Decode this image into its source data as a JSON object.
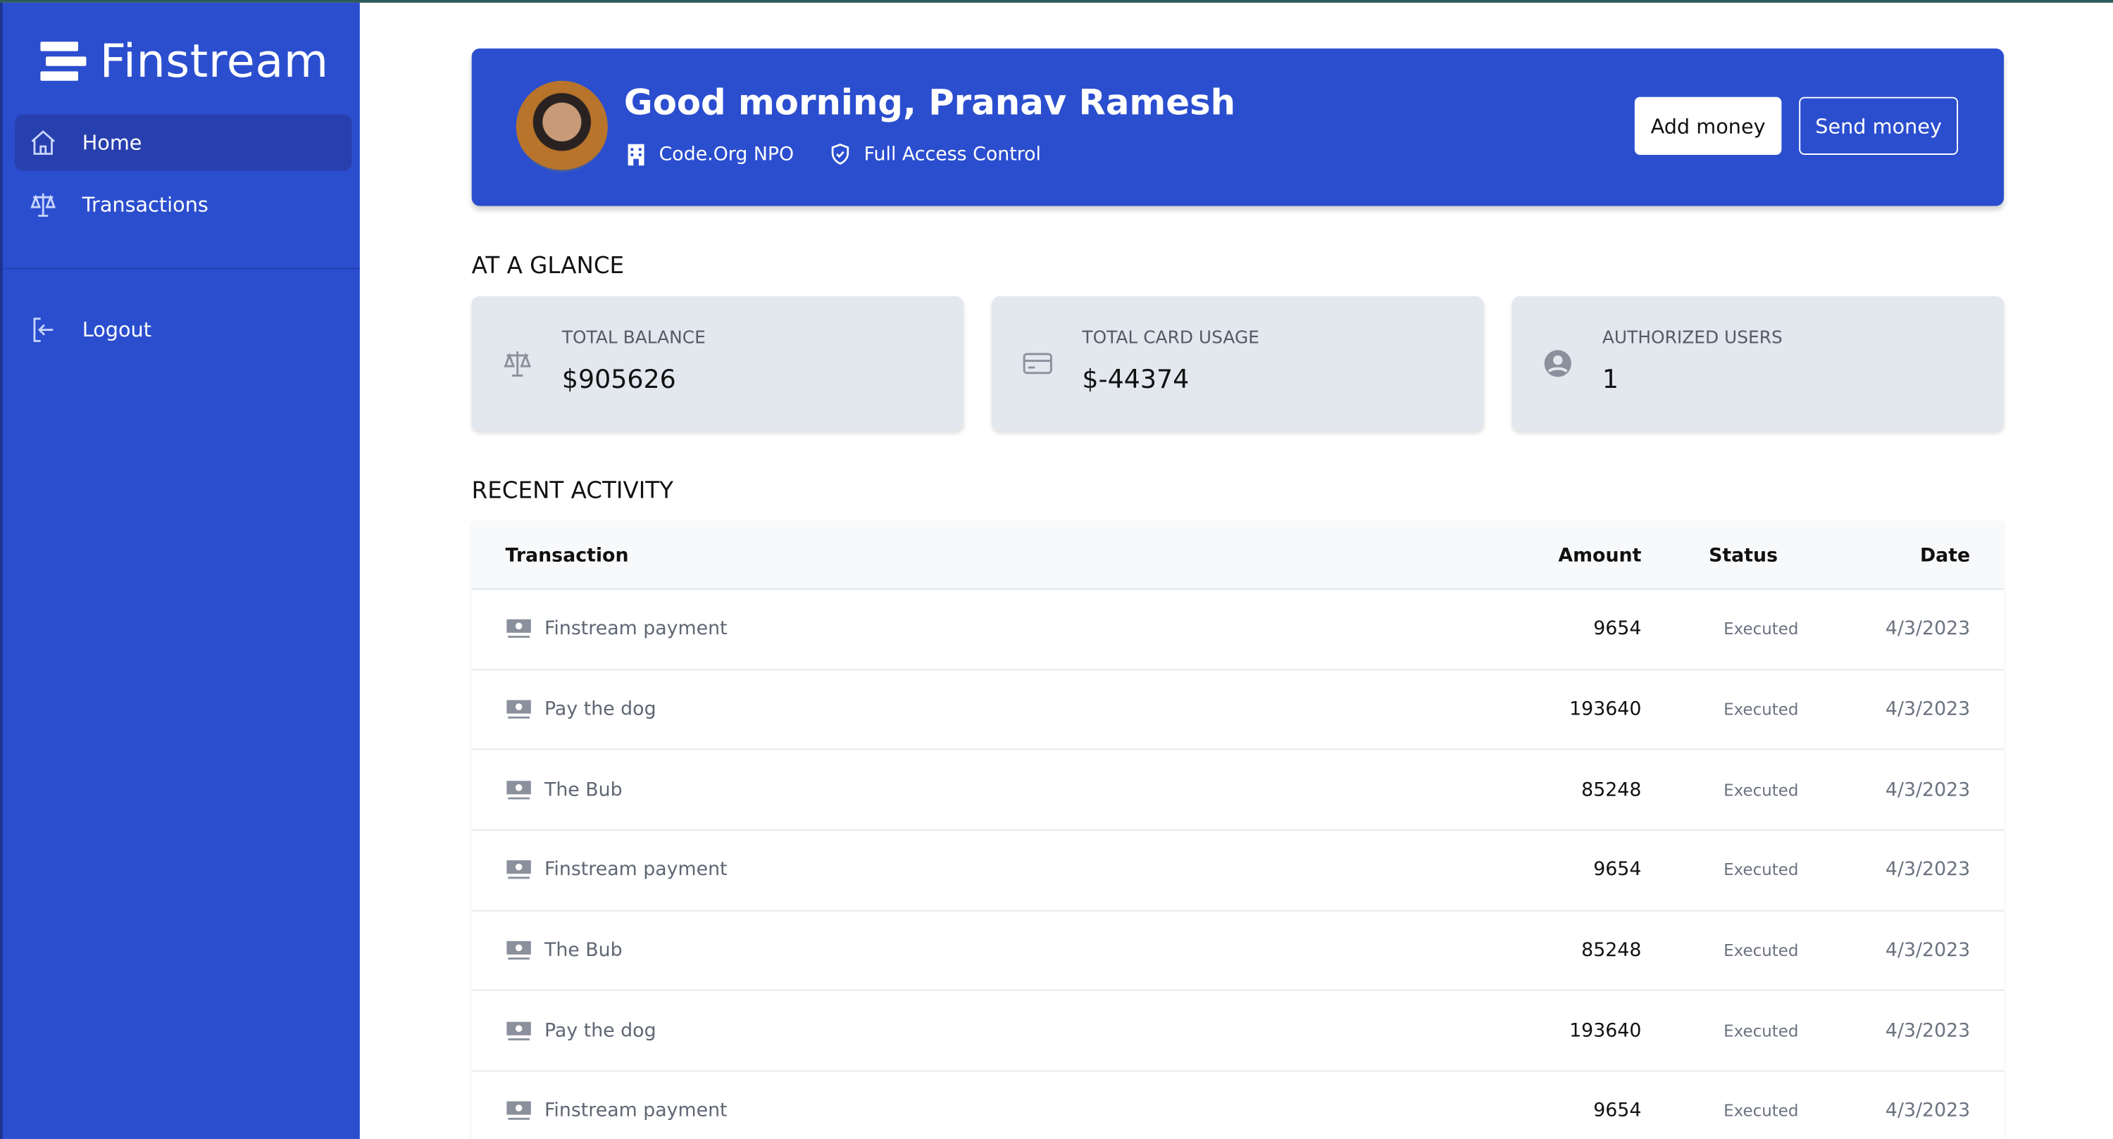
{
  "app": {
    "name": "Finstream"
  },
  "sidebar": {
    "items": [
      {
        "label": "Home",
        "icon": "home-icon",
        "active": true
      },
      {
        "label": "Transactions",
        "icon": "scale-icon"
      }
    ],
    "logout": "Logout"
  },
  "header": {
    "greeting": "Good morning, Pranav Ramesh",
    "org": "Code.Org NPO",
    "access": "Full Access Control",
    "add_money": "Add money",
    "send_money": "Send money"
  },
  "glance": {
    "title": "AT A GLANCE",
    "cards": [
      {
        "label": "TOTAL BALANCE",
        "value": "$905626",
        "icon": "scale-icon"
      },
      {
        "label": "TOTAL CARD USAGE",
        "value": "$-44374",
        "icon": "credit-card-icon"
      },
      {
        "label": "AUTHORIZED USERS",
        "value": "1",
        "icon": "user-circle-icon"
      }
    ]
  },
  "activity": {
    "title": "RECENT ACTIVITY",
    "columns": [
      "Transaction",
      "Amount",
      "Status",
      "Date"
    ],
    "rows": [
      {
        "name": "Finstream payment",
        "amount": "9654",
        "status": "Executed",
        "date": "4/3/2023"
      },
      {
        "name": "Pay the dog",
        "amount": "193640",
        "status": "Executed",
        "date": "4/3/2023"
      },
      {
        "name": "The Bub",
        "amount": "85248",
        "status": "Executed",
        "date": "4/3/2023"
      },
      {
        "name": "Finstream payment",
        "amount": "9654",
        "status": "Executed",
        "date": "4/3/2023"
      },
      {
        "name": "The Bub",
        "amount": "85248",
        "status": "Executed",
        "date": "4/3/2023"
      },
      {
        "name": "Pay the dog",
        "amount": "193640",
        "status": "Executed",
        "date": "4/3/2023"
      },
      {
        "name": "Finstream payment",
        "amount": "9654",
        "status": "Executed",
        "date": "4/3/2023"
      }
    ]
  },
  "colors": {
    "brand": "#2B4ECF",
    "card_bg": "#E3E7EE"
  }
}
